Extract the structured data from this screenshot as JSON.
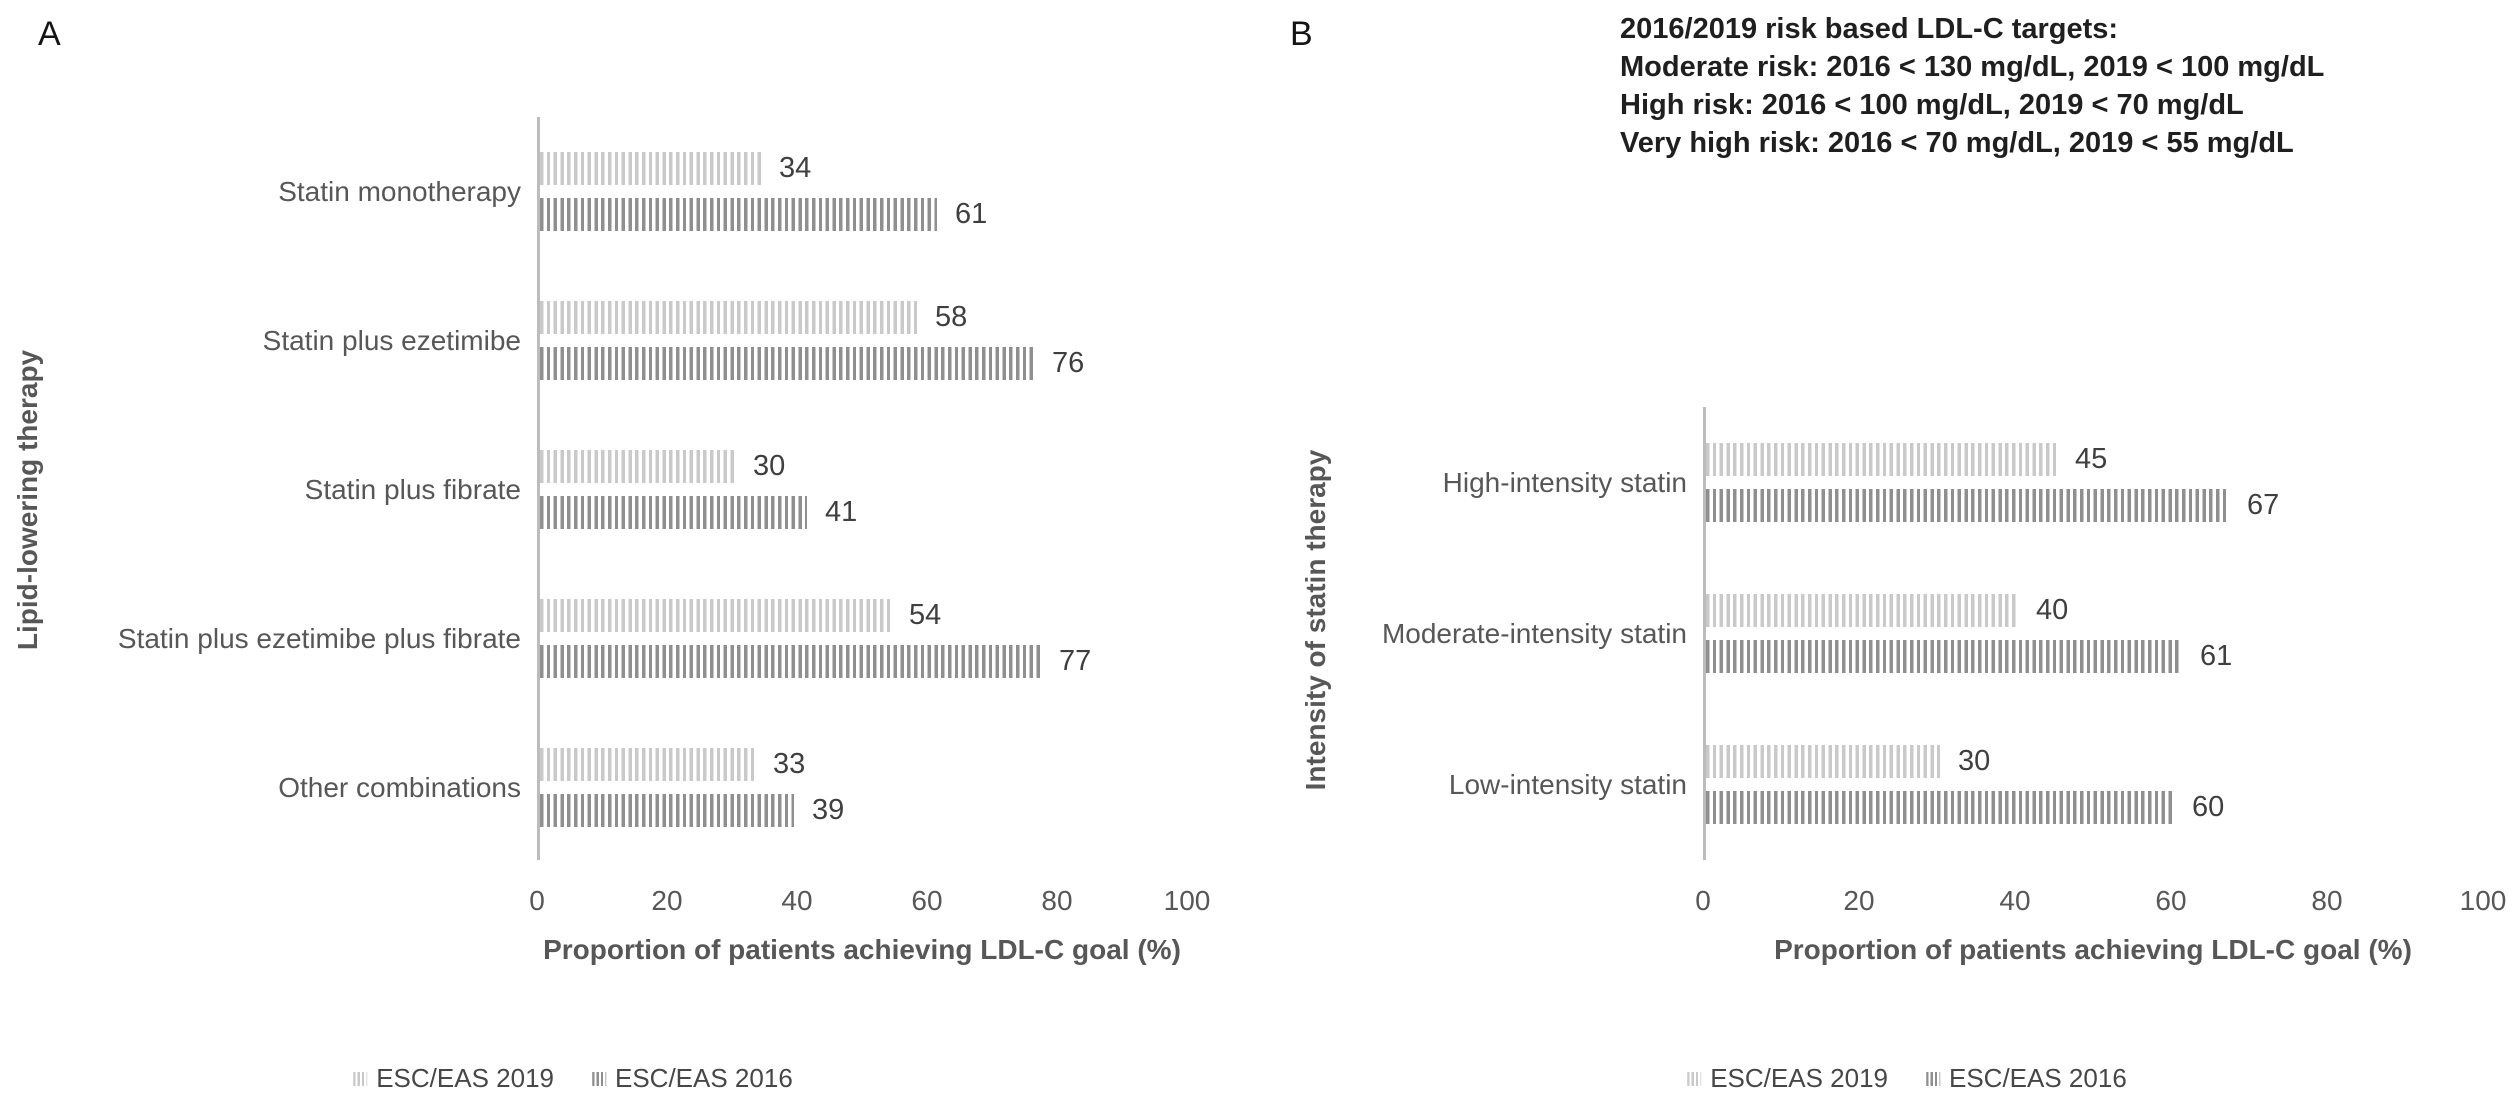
{
  "chart_data": [
    {
      "type": "bar",
      "orientation": "horizontal",
      "panel_label": "A",
      "xlabel": "Proportion of patients achieving LDL-C goal (%)",
      "ylabel": "Lipid-lowering therapy",
      "categories": [
        "Statin monotherapy",
        "Statin plus ezetimibe",
        "Statin plus fibrate",
        "Statin plus ezetimibe plus fibrate",
        "Other combinations"
      ],
      "series": [
        {
          "name": "ESC/EAS 2019",
          "values": [
            34,
            58,
            30,
            54,
            33
          ]
        },
        {
          "name": "ESC/EAS 2016",
          "values": [
            61,
            76,
            41,
            77,
            39
          ]
        }
      ],
      "x_ticks": [
        0,
        20,
        40,
        60,
        80,
        100
      ],
      "xlim": [
        0,
        100
      ],
      "grid": false,
      "value_labels_shown": true,
      "legend_position": "bottom-center"
    },
    {
      "type": "bar",
      "orientation": "horizontal",
      "panel_label": "B",
      "xlabel": "Proportion of patients achieving LDL-C goal (%)",
      "ylabel": "Intensity of statin therapy",
      "categories": [
        "High-intensity statin",
        "Moderate-intensity statin",
        "Low-intensity statin"
      ],
      "series": [
        {
          "name": "ESC/EAS 2019",
          "values": [
            45,
            40,
            30
          ]
        },
        {
          "name": "ESC/EAS 2016",
          "values": [
            67,
            61,
            60
          ]
        }
      ],
      "x_ticks": [
        0,
        20,
        40,
        60,
        80,
        100
      ],
      "xlim": [
        0,
        100
      ],
      "grid": false,
      "value_labels_shown": true,
      "legend_position": "bottom-center"
    }
  ],
  "annotation": {
    "lines": [
      "2016/2019 risk based LDL-C targets:",
      "Moderate risk: 2016 < 130 mg/dL, 2019 < 100 mg/dL",
      "High risk: 2016 < 100 mg/dL, 2019 < 70 mg/dL",
      "Very high risk: 2016 < 70 mg/dL, 2019 < 55 mg/dL"
    ]
  },
  "colors": {
    "series_2019": "#c9c9c9",
    "series_2016": "#8f8f8f",
    "axis_line": "#bcbcbc",
    "label_text": "#575757",
    "value_text": "#3f3f3f",
    "annotation_text": "#1f1f1f"
  }
}
